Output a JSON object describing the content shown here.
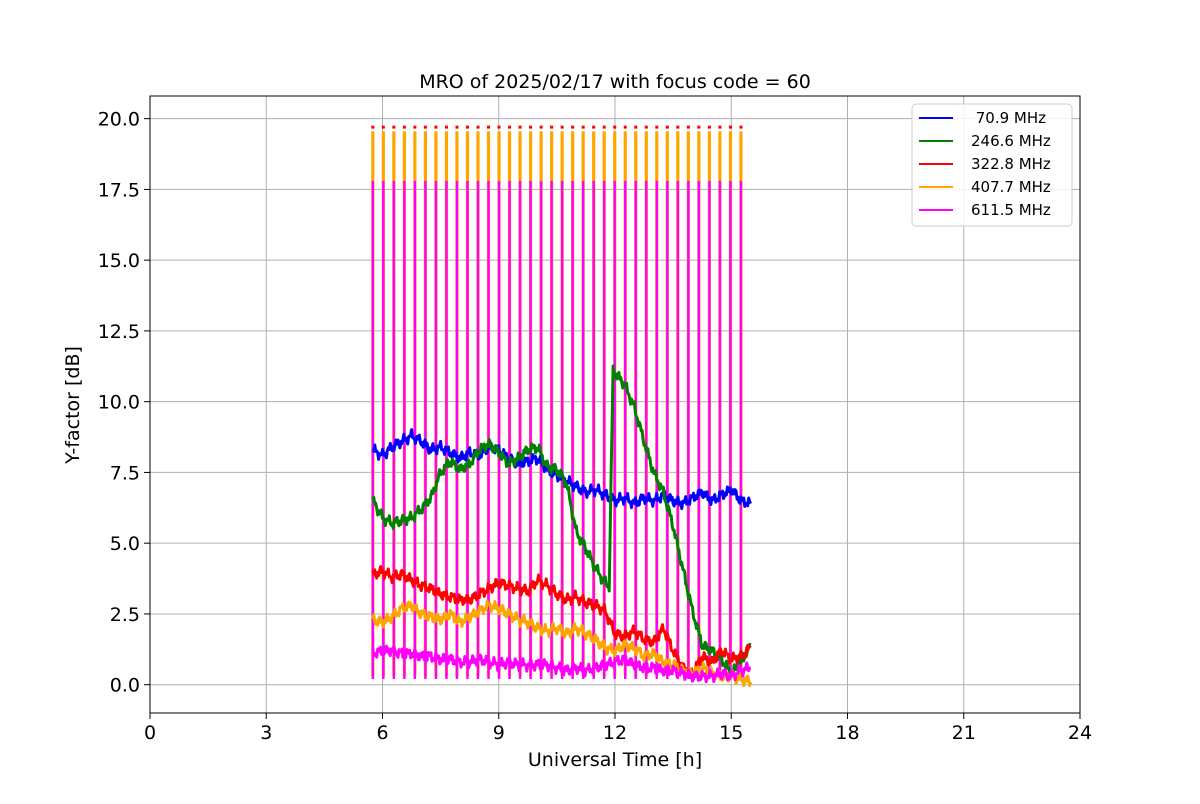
{
  "chart_data": {
    "type": "line",
    "title": "MRO of 2025/02/17 with focus code = 60",
    "xlabel": "Universal Time [h]",
    "ylabel": "Y-factor [dB]",
    "xlim": [
      0,
      24
    ],
    "ylim": [
      -1.0,
      20.8
    ],
    "xticks": [
      0,
      3,
      6,
      9,
      12,
      15,
      18,
      21,
      24
    ],
    "xtick_labels": [
      "0",
      "3",
      "6",
      "9",
      "12",
      "15",
      "18",
      "21",
      "24"
    ],
    "yticks": [
      0.0,
      2.5,
      5.0,
      7.5,
      10.0,
      12.5,
      15.0,
      17.5,
      20.0
    ],
    "ytick_labels": [
      "0.0",
      "2.5",
      "5.0",
      "7.5",
      "10.0",
      "12.5",
      "15.0",
      "17.5",
      "20.0"
    ],
    "grid": true,
    "legend_position": "top-right",
    "calibration_spikes": {
      "start": 5.75,
      "end": 15.25,
      "count": 36,
      "peak_magenta": 17.8,
      "peak_orange": 19.55,
      "peak_red": 19.7
    },
    "series": [
      {
        "name": " 70.9 MHz",
        "color": "#0000ff",
        "x": [
          5.75,
          6.0,
          6.25,
          6.5,
          6.75,
          7.0,
          7.25,
          7.5,
          7.75,
          8.0,
          8.25,
          8.5,
          8.75,
          9.0,
          9.25,
          9.5,
          9.75,
          10.0,
          10.25,
          10.5,
          10.75,
          11.0,
          11.25,
          11.5,
          11.75,
          12.0,
          12.25,
          12.5,
          12.75,
          13.0,
          13.25,
          13.5,
          13.75,
          14.0,
          14.25,
          14.5,
          14.75,
          15.0,
          15.25,
          15.5
        ],
        "y": [
          8.3,
          8.1,
          8.4,
          8.6,
          8.8,
          8.6,
          8.3,
          8.4,
          8.2,
          8.0,
          8.2,
          8.1,
          8.4,
          8.3,
          8.0,
          7.8,
          7.9,
          8.0,
          7.6,
          7.4,
          7.2,
          7.0,
          6.8,
          6.9,
          6.7,
          6.5,
          6.6,
          6.4,
          6.6,
          6.5,
          6.7,
          6.5,
          6.4,
          6.6,
          6.8,
          6.5,
          6.7,
          6.9,
          6.5,
          6.4
        ]
      },
      {
        "name": "246.6 MHz",
        "color": "#008000",
        "x": [
          5.75,
          6.0,
          6.25,
          6.5,
          6.75,
          7.0,
          7.25,
          7.5,
          7.75,
          8.0,
          8.25,
          8.5,
          8.75,
          9.0,
          9.25,
          9.5,
          9.75,
          10.0,
          10.25,
          10.5,
          10.75,
          11.0,
          11.25,
          11.5,
          11.75,
          11.85,
          11.95,
          12.25,
          12.5,
          12.75,
          13.0,
          13.25,
          13.5,
          13.75,
          14.0,
          14.25,
          14.5,
          14.75,
          15.0,
          15.25,
          15.5
        ],
        "y": [
          6.5,
          5.9,
          5.7,
          5.8,
          5.9,
          6.2,
          6.6,
          7.5,
          7.9,
          7.6,
          7.8,
          8.3,
          8.5,
          8.2,
          7.8,
          8.0,
          8.3,
          8.4,
          7.7,
          7.6,
          7.1,
          5.4,
          4.8,
          4.1,
          3.6,
          3.5,
          11.1,
          10.6,
          9.8,
          8.6,
          7.5,
          6.8,
          5.6,
          4.1,
          2.6,
          1.4,
          1.2,
          0.9,
          0.4,
          0.8,
          1.4
        ]
      },
      {
        "name": "322.8 MHz",
        "color": "#ff0000",
        "x": [
          5.75,
          6.0,
          6.25,
          6.5,
          6.75,
          7.0,
          7.25,
          7.5,
          7.75,
          8.0,
          8.25,
          8.5,
          8.75,
          9.0,
          9.25,
          9.5,
          9.75,
          10.0,
          10.25,
          10.5,
          10.75,
          11.0,
          11.25,
          11.5,
          11.75,
          12.0,
          12.25,
          12.5,
          12.75,
          13.0,
          13.25,
          13.5,
          13.75,
          14.0,
          14.25,
          14.5,
          14.75,
          15.0,
          15.25,
          15.5
        ],
        "y": [
          3.9,
          4.0,
          3.8,
          3.9,
          3.7,
          3.5,
          3.4,
          3.2,
          3.1,
          3.0,
          3.0,
          3.2,
          3.4,
          3.6,
          3.5,
          3.4,
          3.3,
          3.7,
          3.5,
          3.2,
          3.0,
          3.1,
          2.9,
          2.8,
          2.6,
          1.8,
          1.7,
          1.9,
          1.6,
          1.5,
          2.0,
          1.2,
          0.6,
          0.4,
          1.0,
          0.8,
          1.2,
          0.9,
          1.0,
          1.3
        ]
      },
      {
        "name": "407.7 MHz",
        "color": "#ffa500",
        "x": [
          5.75,
          6.0,
          6.25,
          6.5,
          6.75,
          7.0,
          7.25,
          7.5,
          7.75,
          8.0,
          8.25,
          8.5,
          8.75,
          9.0,
          9.25,
          9.5,
          9.75,
          10.0,
          10.25,
          10.5,
          10.75,
          11.0,
          11.25,
          11.5,
          11.75,
          12.0,
          12.25,
          12.5,
          12.75,
          13.0,
          13.25,
          13.5,
          13.75,
          14.0,
          14.25,
          14.5,
          14.75,
          15.0,
          15.25,
          15.5
        ],
        "y": [
          2.3,
          2.2,
          2.4,
          2.7,
          2.8,
          2.5,
          2.4,
          2.3,
          2.5,
          2.2,
          2.4,
          2.6,
          2.8,
          2.7,
          2.5,
          2.3,
          2.2,
          2.0,
          1.9,
          2.0,
          1.8,
          2.0,
          1.8,
          1.6,
          1.3,
          1.2,
          1.4,
          1.3,
          1.0,
          1.1,
          0.8,
          0.7,
          0.5,
          0.4,
          0.6,
          0.4,
          0.3,
          0.3,
          0.2,
          0.1
        ]
      },
      {
        "name": "611.5 MHz",
        "color": "#ff00ff",
        "x": [
          5.75,
          6.0,
          6.25,
          6.5,
          6.75,
          7.0,
          7.25,
          7.5,
          7.75,
          8.0,
          8.25,
          8.5,
          8.75,
          9.0,
          9.25,
          9.5,
          9.75,
          10.0,
          10.25,
          10.5,
          10.75,
          11.0,
          11.25,
          11.5,
          11.75,
          12.0,
          12.25,
          12.5,
          12.75,
          13.0,
          13.25,
          13.5,
          13.75,
          14.0,
          14.25,
          14.5,
          14.75,
          15.0,
          15.25,
          15.5
        ],
        "y": [
          1.1,
          1.2,
          1.2,
          1.1,
          1.1,
          1.0,
          1.0,
          0.9,
          0.9,
          0.8,
          0.8,
          0.9,
          0.8,
          0.7,
          0.8,
          0.7,
          0.7,
          0.7,
          0.7,
          0.6,
          0.5,
          0.6,
          0.5,
          0.6,
          0.7,
          0.8,
          0.9,
          0.7,
          0.6,
          0.6,
          0.5,
          0.5,
          0.4,
          0.3,
          0.3,
          0.3,
          0.4,
          0.3,
          0.5,
          0.6
        ]
      }
    ]
  }
}
